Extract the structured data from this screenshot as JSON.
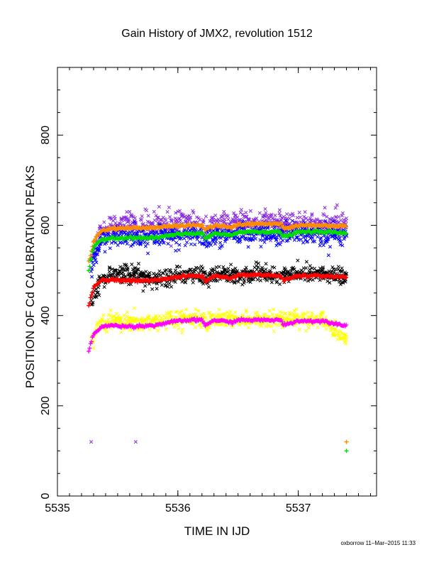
{
  "chart_data": {
    "type": "scatter",
    "title": "Gain History of JMX2, revolution 1512",
    "xlabel": "TIME IN IJD",
    "ylabel": "POSITION OF Cd CALIBRATION PEAKS",
    "credit": "oxborrow 11–Mar–2015 11:33",
    "xlim": [
      5535.0,
      5537.65
    ],
    "ylim": [
      0,
      950
    ],
    "x_ticks": [
      5535,
      5536,
      5537
    ],
    "y_ticks": [
      0,
      200,
      400,
      600,
      800
    ],
    "grid": false,
    "legend": "none",
    "series": [
      {
        "color": "#8a2be2",
        "marker": "x",
        "scatter_sd": 14,
        "x": [
          5535.28,
          5535.35,
          5535.45,
          5535.6,
          5535.8,
          5535.95,
          5536.1,
          5536.2,
          5536.22,
          5536.3,
          5536.5,
          5536.7,
          5536.85,
          5537.0,
          5537.2,
          5537.4
        ],
        "y": [
          520,
          582,
          600,
          600,
          600,
          603,
          605,
          603,
          590,
          600,
          603,
          607,
          605,
          603,
          602,
          600
        ],
        "outliers": [
          [
            5535.28,
            120
          ],
          [
            5535.65,
            120
          ]
        ]
      },
      {
        "color": "#0000ff",
        "marker": "x",
        "scatter_sd": 12,
        "x": [
          5535.28,
          5535.35,
          5535.45,
          5535.6,
          5535.8,
          5535.95,
          5536.1,
          5536.2,
          5536.22,
          5536.3,
          5536.5,
          5536.7,
          5536.85,
          5537.0,
          5537.2,
          5537.4
        ],
        "y": [
          505,
          560,
          575,
          575,
          572,
          577,
          580,
          578,
          565,
          578,
          580,
          583,
          580,
          582,
          580,
          575
        ]
      },
      {
        "color": "#ff8c00",
        "marker": "+",
        "scatter_sd": 1.5,
        "x": [
          5535.26,
          5535.3,
          5535.36,
          5535.45,
          5535.6,
          5535.8,
          5535.95,
          5536.1,
          5536.2,
          5536.23,
          5536.3,
          5536.45,
          5536.5,
          5536.7,
          5536.85,
          5536.88,
          5537.0,
          5537.2,
          5537.4
        ],
        "y": [
          518,
          565,
          588,
          593,
          594,
          595,
          598,
          600,
          600,
          590,
          600,
          595,
          602,
          603,
          603,
          592,
          600,
          600,
          598
        ],
        "outliers": [
          [
            5537.4,
            120
          ]
        ]
      },
      {
        "color": "#00dd00",
        "marker": "+",
        "scatter_sd": 1.5,
        "x": [
          5535.26,
          5535.3,
          5535.36,
          5535.45,
          5535.6,
          5535.8,
          5535.95,
          5536.1,
          5536.2,
          5536.23,
          5536.3,
          5536.45,
          5536.5,
          5536.7,
          5536.85,
          5536.88,
          5537.0,
          5537.2,
          5537.4
        ],
        "y": [
          500,
          550,
          568,
          572,
          572,
          572,
          578,
          582,
          582,
          570,
          582,
          577,
          585,
          586,
          585,
          574,
          585,
          586,
          582
        ],
        "outliers": [
          [
            5537.4,
            100
          ]
        ]
      },
      {
        "color": "#000000",
        "marker": "x",
        "scatter_sd": 10,
        "x": [
          5535.28,
          5535.35,
          5535.45,
          5535.6,
          5535.8,
          5535.95,
          5536.1,
          5536.2,
          5536.22,
          5536.3,
          5536.5,
          5536.7,
          5536.85,
          5537.0,
          5537.2,
          5537.4
        ],
        "y": [
          430,
          475,
          492,
          490,
          480,
          485,
          492,
          490,
          478,
          490,
          492,
          492,
          488,
          495,
          492,
          485
        ]
      },
      {
        "color": "#ff0000",
        "marker": "+",
        "scatter_sd": 1.5,
        "x": [
          5535.26,
          5535.3,
          5535.36,
          5535.45,
          5535.6,
          5535.8,
          5535.95,
          5536.1,
          5536.2,
          5536.23,
          5536.3,
          5536.45,
          5536.5,
          5536.7,
          5536.85,
          5536.88,
          5537.0,
          5537.2,
          5537.4
        ],
        "y": [
          422,
          462,
          478,
          480,
          477,
          478,
          484,
          488,
          488,
          476,
          488,
          483,
          490,
          490,
          488,
          478,
          488,
          488,
          485
        ]
      },
      {
        "color": "#ffff00",
        "marker": "x",
        "scatter_sd": 9,
        "x": [
          5535.28,
          5535.35,
          5535.45,
          5535.6,
          5535.8,
          5535.95,
          5536.1,
          5536.2,
          5536.22,
          5536.3,
          5536.5,
          5536.7,
          5536.85,
          5537.0,
          5537.2,
          5537.4
        ],
        "y": [
          335,
          380,
          390,
          387,
          385,
          392,
          393,
          392,
          380,
          392,
          393,
          394,
          392,
          392,
          392,
          345
        ]
      },
      {
        "color": "#ff00ff",
        "marker": "+",
        "scatter_sd": 1.5,
        "x": [
          5535.26,
          5535.3,
          5535.36,
          5535.45,
          5535.6,
          5535.8,
          5535.95,
          5536.1,
          5536.2,
          5536.23,
          5536.3,
          5536.45,
          5536.5,
          5536.7,
          5536.85,
          5536.88,
          5537.0,
          5537.2,
          5537.4
        ],
        "y": [
          322,
          358,
          375,
          378,
          376,
          378,
          386,
          390,
          390,
          378,
          390,
          385,
          390,
          390,
          390,
          380,
          388,
          388,
          378
        ]
      }
    ]
  }
}
